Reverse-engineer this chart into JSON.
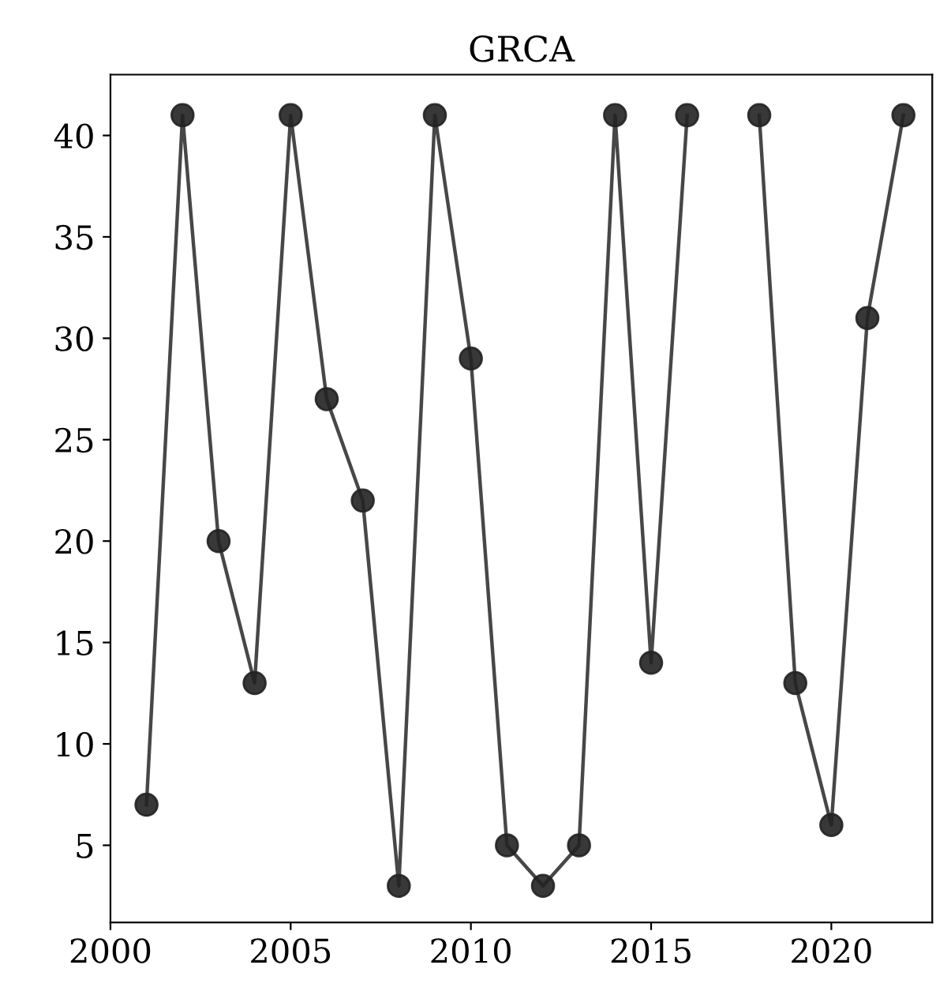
{
  "chart_data": {
    "type": "line",
    "title": "GRCA",
    "x": [
      2001,
      2002,
      2003,
      2004,
      2005,
      2006,
      2007,
      2008,
      2009,
      2010,
      2011,
      2012,
      2013,
      2014,
      2015,
      2016,
      2017,
      2018,
      2019,
      2020,
      2021,
      2022
    ],
    "series": [
      {
        "color": "#333333",
        "values": [
          7,
          41,
          20,
          13,
          41,
          27,
          22,
          3,
          41,
          29,
          5,
          3,
          5,
          41,
          14,
          41,
          null,
          41,
          13,
          6,
          31,
          41
        ]
      }
    ],
    "xlim": [
      2000,
      2022.8
    ],
    "xticks": [
      2000,
      2005,
      2010,
      2015,
      2020
    ],
    "ylim": [
      1.2,
      43
    ],
    "yticks": [
      5,
      10,
      15,
      20,
      25,
      30,
      35,
      40
    ],
    "marker": "circle",
    "line_style": "solid",
    "grid": false,
    "legend": false
  }
}
